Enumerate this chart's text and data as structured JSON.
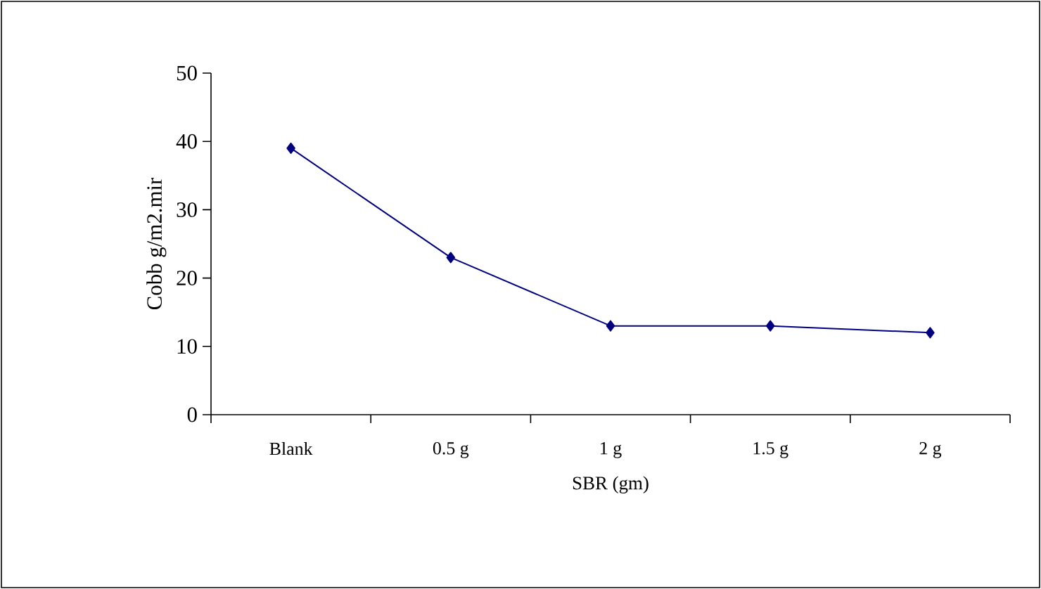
{
  "chart_data": {
    "type": "line",
    "xlabel": "SBR (gm)",
    "ylabel": "Cobb g/m2.mir",
    "categories": [
      "Blank",
      "0.5 g",
      "1 g",
      "1.5 g",
      "2 g"
    ],
    "series": [
      {
        "color": "#000080",
        "values": [
          39,
          23,
          13,
          13,
          12
        ]
      }
    ],
    "ylim": [
      0,
      50
    ],
    "yticks": [
      0,
      10,
      20,
      30,
      40,
      50
    ],
    "grid": false,
    "marker": "diamond",
    "line_style": "solid"
  }
}
